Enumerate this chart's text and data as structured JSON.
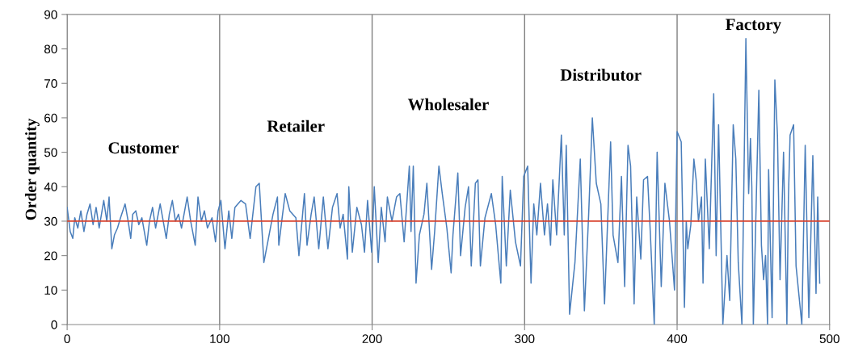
{
  "chart_data": {
    "type": "line",
    "ylabel": "Order quantity",
    "xlim": [
      0,
      500
    ],
    "xticks": [
      0,
      100,
      200,
      300,
      400,
      500
    ],
    "ylim": [
      0,
      90
    ],
    "yticks": [
      0,
      10,
      20,
      30,
      40,
      50,
      60,
      70,
      80,
      90
    ],
    "grid": "x",
    "marker": "none",
    "line_style": "solid",
    "ref_lines": [
      {
        "axis": "y",
        "value": 30,
        "label": null,
        "color": "#d9412b"
      }
    ],
    "annotations": [
      "Customer",
      "Retailer",
      "Wholesaler",
      "Distributor",
      "Factory"
    ],
    "series": [
      {
        "color": "#4a7ebb",
        "x": [
          0,
          2,
          3.7,
          5,
          7,
          9,
          11,
          13,
          15,
          17,
          19,
          21,
          24,
          26,
          27.5,
          29.3,
          31,
          33,
          35,
          38,
          40,
          41.7,
          43,
          45,
          47,
          49,
          52.2,
          54,
          56,
          58,
          61,
          63,
          65,
          67,
          69,
          71,
          73,
          75,
          78.7,
          81,
          84,
          85.8,
          88,
          90,
          92,
          95,
          97.3,
          99,
          100.8,
          103.5,
          106,
          108,
          110,
          114,
          117,
          120,
          123.8,
          126,
          129,
          132,
          135,
          137.9,
          138.8,
          141,
          143,
          146,
          150,
          152,
          155.6,
          157.3,
          160,
          162,
          165,
          168,
          171,
          174,
          177,
          179,
          181,
          183.8,
          184.7,
          187,
          190,
          193,
          195,
          197,
          199.7,
          201.4,
          204,
          206,
          208.5,
          210,
          213,
          216,
          218.2,
          221,
          224.4,
          225.5,
          227,
          228.8,
          231,
          234,
          235.9,
          239,
          241,
          243.8,
          246,
          249,
          251.8,
          253,
          256.2,
          258,
          261,
          263.2,
          265,
          267.7,
          269.4,
          271,
          274,
          278.2,
          281,
          284.4,
          285.3,
          288,
          290.6,
          294,
          297.3,
          299.4,
          302,
          304.2,
          306,
          308,
          310.4,
          313,
          315,
          317,
          318.5,
          321,
          324.1,
          326,
          327.3,
          329.5,
          333,
          336.5,
          339.2,
          342,
          344.4,
          347,
          350,
          352.4,
          356.4,
          358,
          361.2,
          363.5,
          365.6,
          367.8,
          369.5,
          371.8,
          373.5,
          376.2,
          378,
          380.6,
          382.5,
          385,
          386.9,
          389.6,
          392,
          395,
          398.3,
          400,
          402.7,
          404.8,
          406,
          407,
          409,
          411,
          412.5,
          414,
          416,
          417,
          418.5,
          421.1,
          424,
          425.6,
          427.2,
          430,
          432.7,
          434.5,
          436.8,
          438.5,
          440.1,
          442.5,
          445.1,
          446.9,
          448.1,
          449,
          450,
          453.6,
          455.3,
          456.7,
          458,
          459.3,
          460,
          462.3,
          464.1,
          465.8,
          467.5,
          469.8,
          472,
          473,
          474.1,
          476.4,
          478,
          481.8,
          484,
          486.4,
          489,
          491.1,
          492.2,
          493.5
        ],
        "values": [
          34,
          27,
          25,
          31,
          28,
          33,
          27,
          32,
          35,
          29,
          34,
          28,
          36,
          30,
          37,
          22,
          26,
          28,
          31,
          35,
          30,
          25,
          32,
          33,
          29,
          31,
          23,
          30,
          34,
          28,
          35,
          30,
          25,
          32,
          36,
          30,
          32,
          28,
          37,
          30,
          23,
          37,
          30,
          33,
          28,
          31,
          24,
          33,
          36,
          22,
          33,
          25,
          34,
          36,
          35,
          25,
          40,
          41,
          18,
          25,
          32,
          37,
          23,
          31,
          38,
          33,
          31,
          20,
          38,
          23,
          32,
          37,
          22,
          37,
          22,
          34,
          38,
          28,
          32,
          19,
          40,
          21,
          34,
          29,
          21,
          36,
          21,
          40,
          18,
          34,
          24,
          37,
          30,
          37,
          38,
          24,
          46,
          27,
          46,
          12,
          26,
          32,
          41,
          16,
          27,
          46,
          38,
          28,
          15,
          26,
          44,
          20,
          34,
          40,
          17,
          41,
          42,
          17,
          31,
          38,
          29,
          12,
          43,
          17,
          39,
          24,
          17,
          43,
          46,
          12,
          35,
          26,
          41,
          26,
          35,
          23,
          42,
          26,
          55,
          26,
          52,
          3,
          18,
          48,
          4,
          32,
          60,
          41,
          35,
          6,
          53,
          26,
          18,
          43,
          11,
          52,
          46,
          6,
          37,
          19,
          42,
          43,
          26,
          0,
          50,
          11,
          41,
          30,
          10,
          56,
          53,
          5,
          30,
          22,
          29,
          48,
          42,
          30,
          37,
          12,
          48,
          22,
          67,
          20,
          58,
          0,
          20,
          7,
          58,
          48,
          18,
          0,
          83,
          38,
          54,
          40,
          0,
          68,
          23,
          13,
          20,
          0,
          45,
          2,
          71,
          55,
          13,
          50,
          0,
          37,
          55,
          58,
          17,
          0,
          52,
          2,
          49,
          9,
          37,
          12
        ]
      }
    ]
  }
}
